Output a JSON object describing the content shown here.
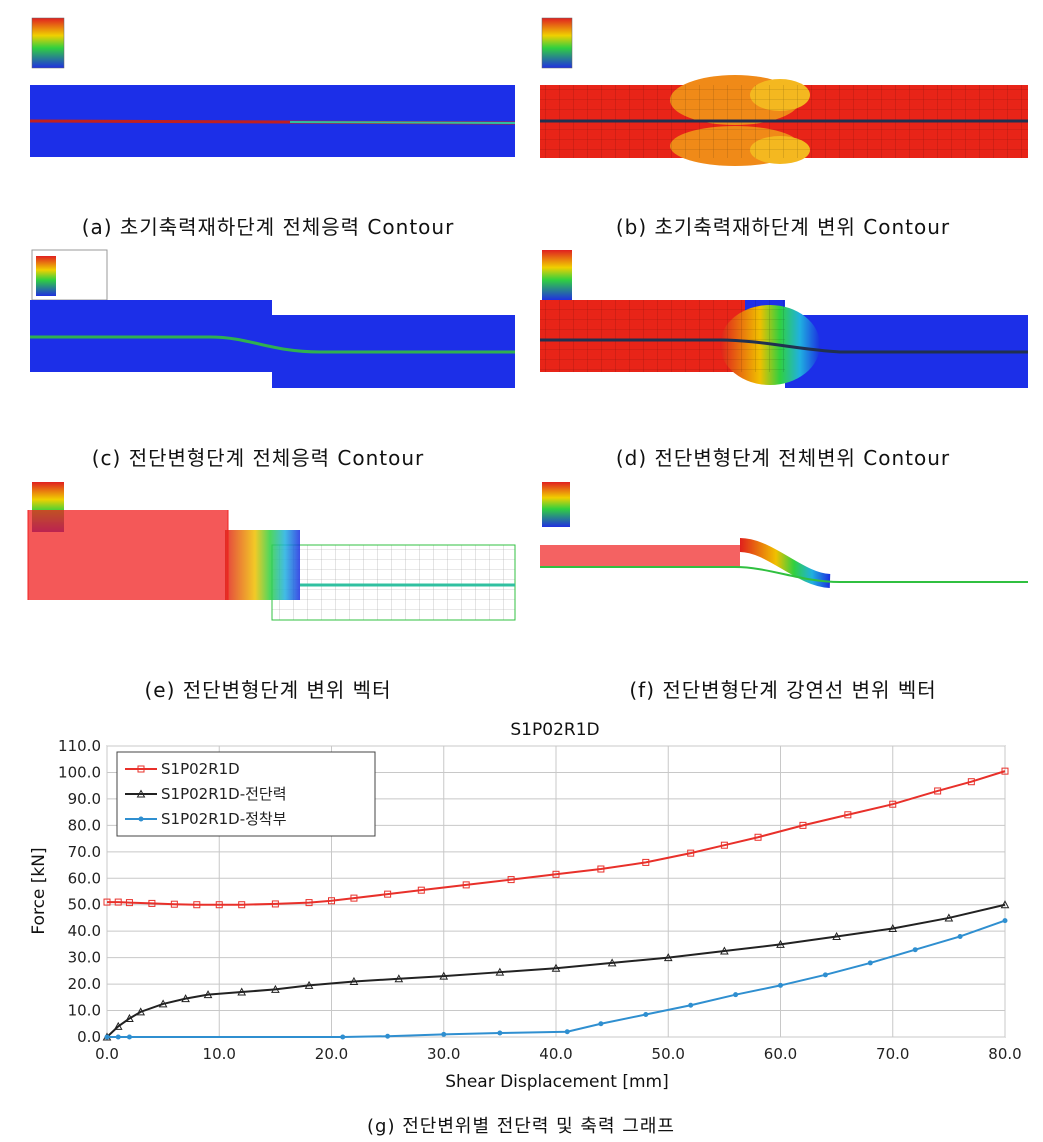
{
  "panels": [
    {
      "caption": "(a) 초기축력재하단계 전체응력 Contour"
    },
    {
      "caption": "(b) 초기축력재하단계 변위 Contour"
    },
    {
      "caption": "(c) 전단변형단계 전체응력 Contour"
    },
    {
      "caption": "(d) 전단변형단계 전체변위 Contour"
    },
    {
      "caption": "(e) 전단변형단계 변위 벡터"
    },
    {
      "caption": "(f) 전단변형단계 강연선 변위 벡터"
    }
  ],
  "figure_caption": "(g) 전단변위별 전단력 및 축력 그래프",
  "chart_data": {
    "type": "line",
    "title": "S1P02R1D",
    "x_label": "Shear Displacement [mm]",
    "y_label": "Force [kN]",
    "xlim": [
      0,
      80
    ],
    "ylim": [
      0,
      110
    ],
    "grid": true,
    "legend": "upper-left",
    "xticks": [
      {
        "value": 0,
        "label": "0.0"
      },
      {
        "value": 10,
        "label": "10.0"
      },
      {
        "value": 20,
        "label": "20.0"
      },
      {
        "value": 30,
        "label": "30.0"
      },
      {
        "value": 40,
        "label": "40.0"
      },
      {
        "value": 50,
        "label": "50.0"
      },
      {
        "value": 60,
        "label": "60.0"
      },
      {
        "value": 70,
        "label": "70.0"
      },
      {
        "value": 80,
        "label": "80.0"
      }
    ],
    "yticks": [
      {
        "value": 0,
        "label": "0.0"
      },
      {
        "value": 10,
        "label": "10.0"
      },
      {
        "value": 20,
        "label": "20.0"
      },
      {
        "value": 30,
        "label": "30.0"
      },
      {
        "value": 40,
        "label": "40.0"
      },
      {
        "value": 50,
        "label": "50.0"
      },
      {
        "value": 60,
        "label": "60.0"
      },
      {
        "value": 70,
        "label": "70.0"
      },
      {
        "value": 80,
        "label": "80.0"
      },
      {
        "value": 90,
        "label": "90.0"
      },
      {
        "value": 100,
        "label": "100.0"
      },
      {
        "value": 110,
        "label": "110.0"
      }
    ],
    "series": [
      {
        "name": "S1P02R1D",
        "color": "#e8302a",
        "marker": "square",
        "x": [
          0,
          1,
          2,
          4,
          6,
          8,
          10,
          12,
          15,
          18,
          20,
          22,
          25,
          28,
          32,
          36,
          40,
          44,
          48,
          52,
          55,
          58,
          62,
          66,
          70,
          74,
          77,
          80
        ],
        "values": [
          51,
          51,
          50.8,
          50.5,
          50.2,
          50,
          50,
          50,
          50.3,
          50.8,
          51.5,
          52.5,
          54,
          55.5,
          57.5,
          59.5,
          61.5,
          63.5,
          66,
          69.5,
          72.5,
          75.5,
          80,
          84,
          88,
          93,
          96.5,
          100.5
        ]
      },
      {
        "name": "S1P02R1D-전단력",
        "color": "#222222",
        "marker": "triangle",
        "x": [
          0,
          1,
          2,
          3,
          5,
          7,
          9,
          12,
          15,
          18,
          22,
          26,
          30,
          35,
          40,
          45,
          50,
          55,
          60,
          65,
          70,
          75,
          80
        ],
        "values": [
          0,
          4,
          7,
          9.5,
          12.5,
          14.5,
          16,
          17,
          18,
          19.5,
          21,
          22,
          23,
          24.5,
          26,
          28,
          30,
          32.5,
          35,
          38,
          41,
          45,
          50
        ]
      },
      {
        "name": "S1P02R1D-정착부",
        "color": "#2f8fd0",
        "marker": "dot",
        "x": [
          0,
          1,
          2,
          21,
          25,
          30,
          35,
          41,
          44,
          48,
          52,
          56,
          60,
          64,
          68,
          72,
          76,
          80
        ],
        "values": [
          0,
          0,
          0,
          0,
          0.3,
          1,
          1.5,
          2,
          5,
          8.5,
          12,
          16,
          19.5,
          23.5,
          28,
          33,
          38,
          44
        ]
      }
    ]
  }
}
